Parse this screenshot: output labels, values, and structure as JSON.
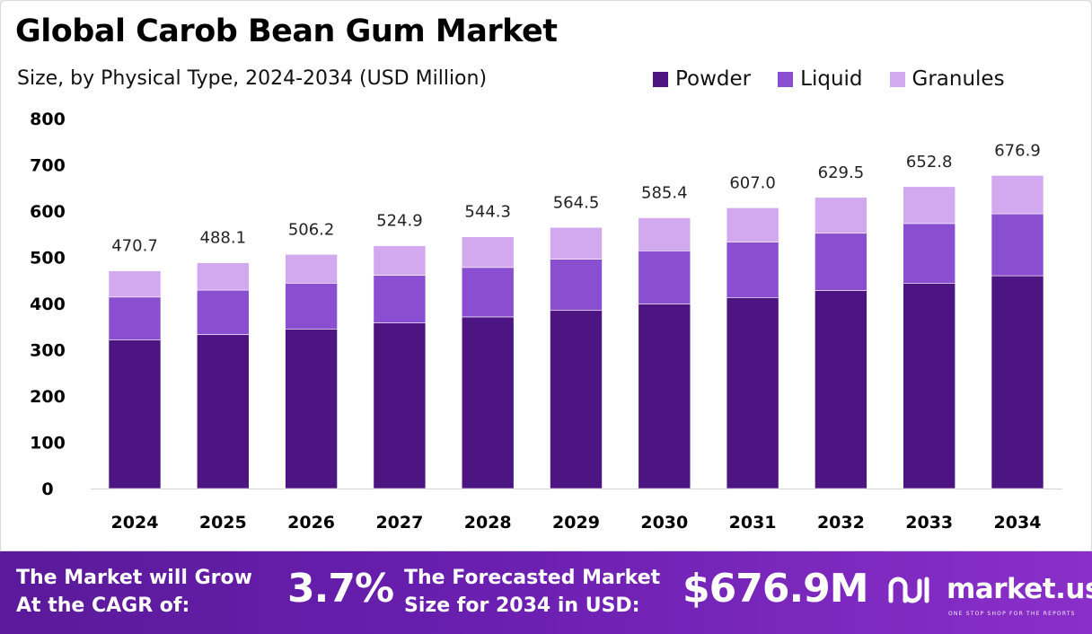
{
  "header": {
    "title": "Global Carob Bean Gum Market",
    "subtitle": "Size, by Physical Type, 2024-2034 (USD Million)"
  },
  "colors": {
    "powder": "#4c1582",
    "liquid": "#8a4fd0",
    "granules": "#d2a8ef",
    "footer": "#6a1fb0"
  },
  "chart_data": {
    "type": "bar",
    "stacked": true,
    "categories": [
      "2024",
      "2025",
      "2026",
      "2027",
      "2028",
      "2029",
      "2030",
      "2031",
      "2032",
      "2033",
      "2034"
    ],
    "series": [
      {
        "name": "Powder",
        "values": [
          321,
          333,
          345,
          358,
          371,
          385,
          399,
          413,
          428,
          444,
          460
        ]
      },
      {
        "name": "Liquid",
        "values": [
          93,
          96,
          99,
          103,
          107,
          111,
          115,
          120,
          124,
          129,
          134
        ]
      },
      {
        "name": "Granules",
        "values": [
          56.7,
          59.1,
          62.2,
          63.9,
          66.3,
          68.5,
          71.4,
          74.0,
          77.5,
          79.8,
          82.9
        ]
      }
    ],
    "totals": [
      "470.7",
      "488.1",
      "506.2",
      "524.9",
      "544.3",
      "564.5",
      "585.4",
      "607.0",
      "629.5",
      "652.8",
      "676.9"
    ],
    "ylim": [
      0,
      800
    ],
    "yticks": [
      0,
      100,
      200,
      300,
      400,
      500,
      600,
      700,
      800
    ],
    "grid": false,
    "legend": "top-right"
  },
  "footer": {
    "cagr_label_line1": "The Market will Grow",
    "cagr_label_line2": "At the CAGR of:",
    "cagr_value": "3.7%",
    "forecast_label_line1": "The Forecasted Market",
    "forecast_label_line2": "Size for 2034 in USD:",
    "forecast_value": "$676.9M",
    "logo_text": "market.us",
    "logo_tagline": "ONE STOP SHOP FOR THE REPORTS"
  }
}
